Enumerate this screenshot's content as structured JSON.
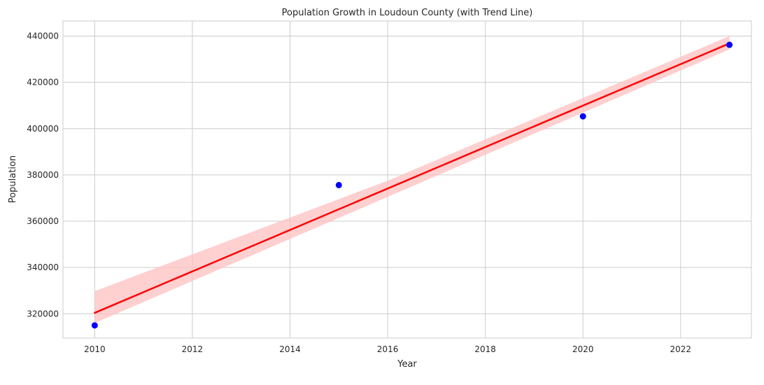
{
  "chart_data": {
    "type": "scatter",
    "title": "Population Growth in Loudoun County (with Trend Line)",
    "xlabel": "Year",
    "ylabel": "Population",
    "xlim": [
      2009.35,
      2023.45
    ],
    "ylim": [
      309500,
      446500
    ],
    "x_ticks": [
      2010,
      2012,
      2014,
      2016,
      2018,
      2020,
      2022
    ],
    "y_ticks": [
      320000,
      340000,
      360000,
      380000,
      400000,
      420000,
      440000
    ],
    "grid": true,
    "series": [
      {
        "type": "scatter",
        "x": [
          2010,
          2015,
          2020,
          2023
        ],
        "y": [
          315000,
          375600,
          405300,
          436200
        ],
        "color": "#0000ff"
      },
      {
        "type": "line",
        "x": [
          2010,
          2023
        ],
        "y": [
          320400,
          436800
        ],
        "color": "#ff0000",
        "confidence_band": {
          "x": [
            2010,
            2016,
            2023
          ],
          "lower": [
            316000,
            370500,
            434200
          ],
          "upper": [
            329800,
            377500,
            440000
          ],
          "color": "#ffc0c0"
        }
      }
    ]
  }
}
